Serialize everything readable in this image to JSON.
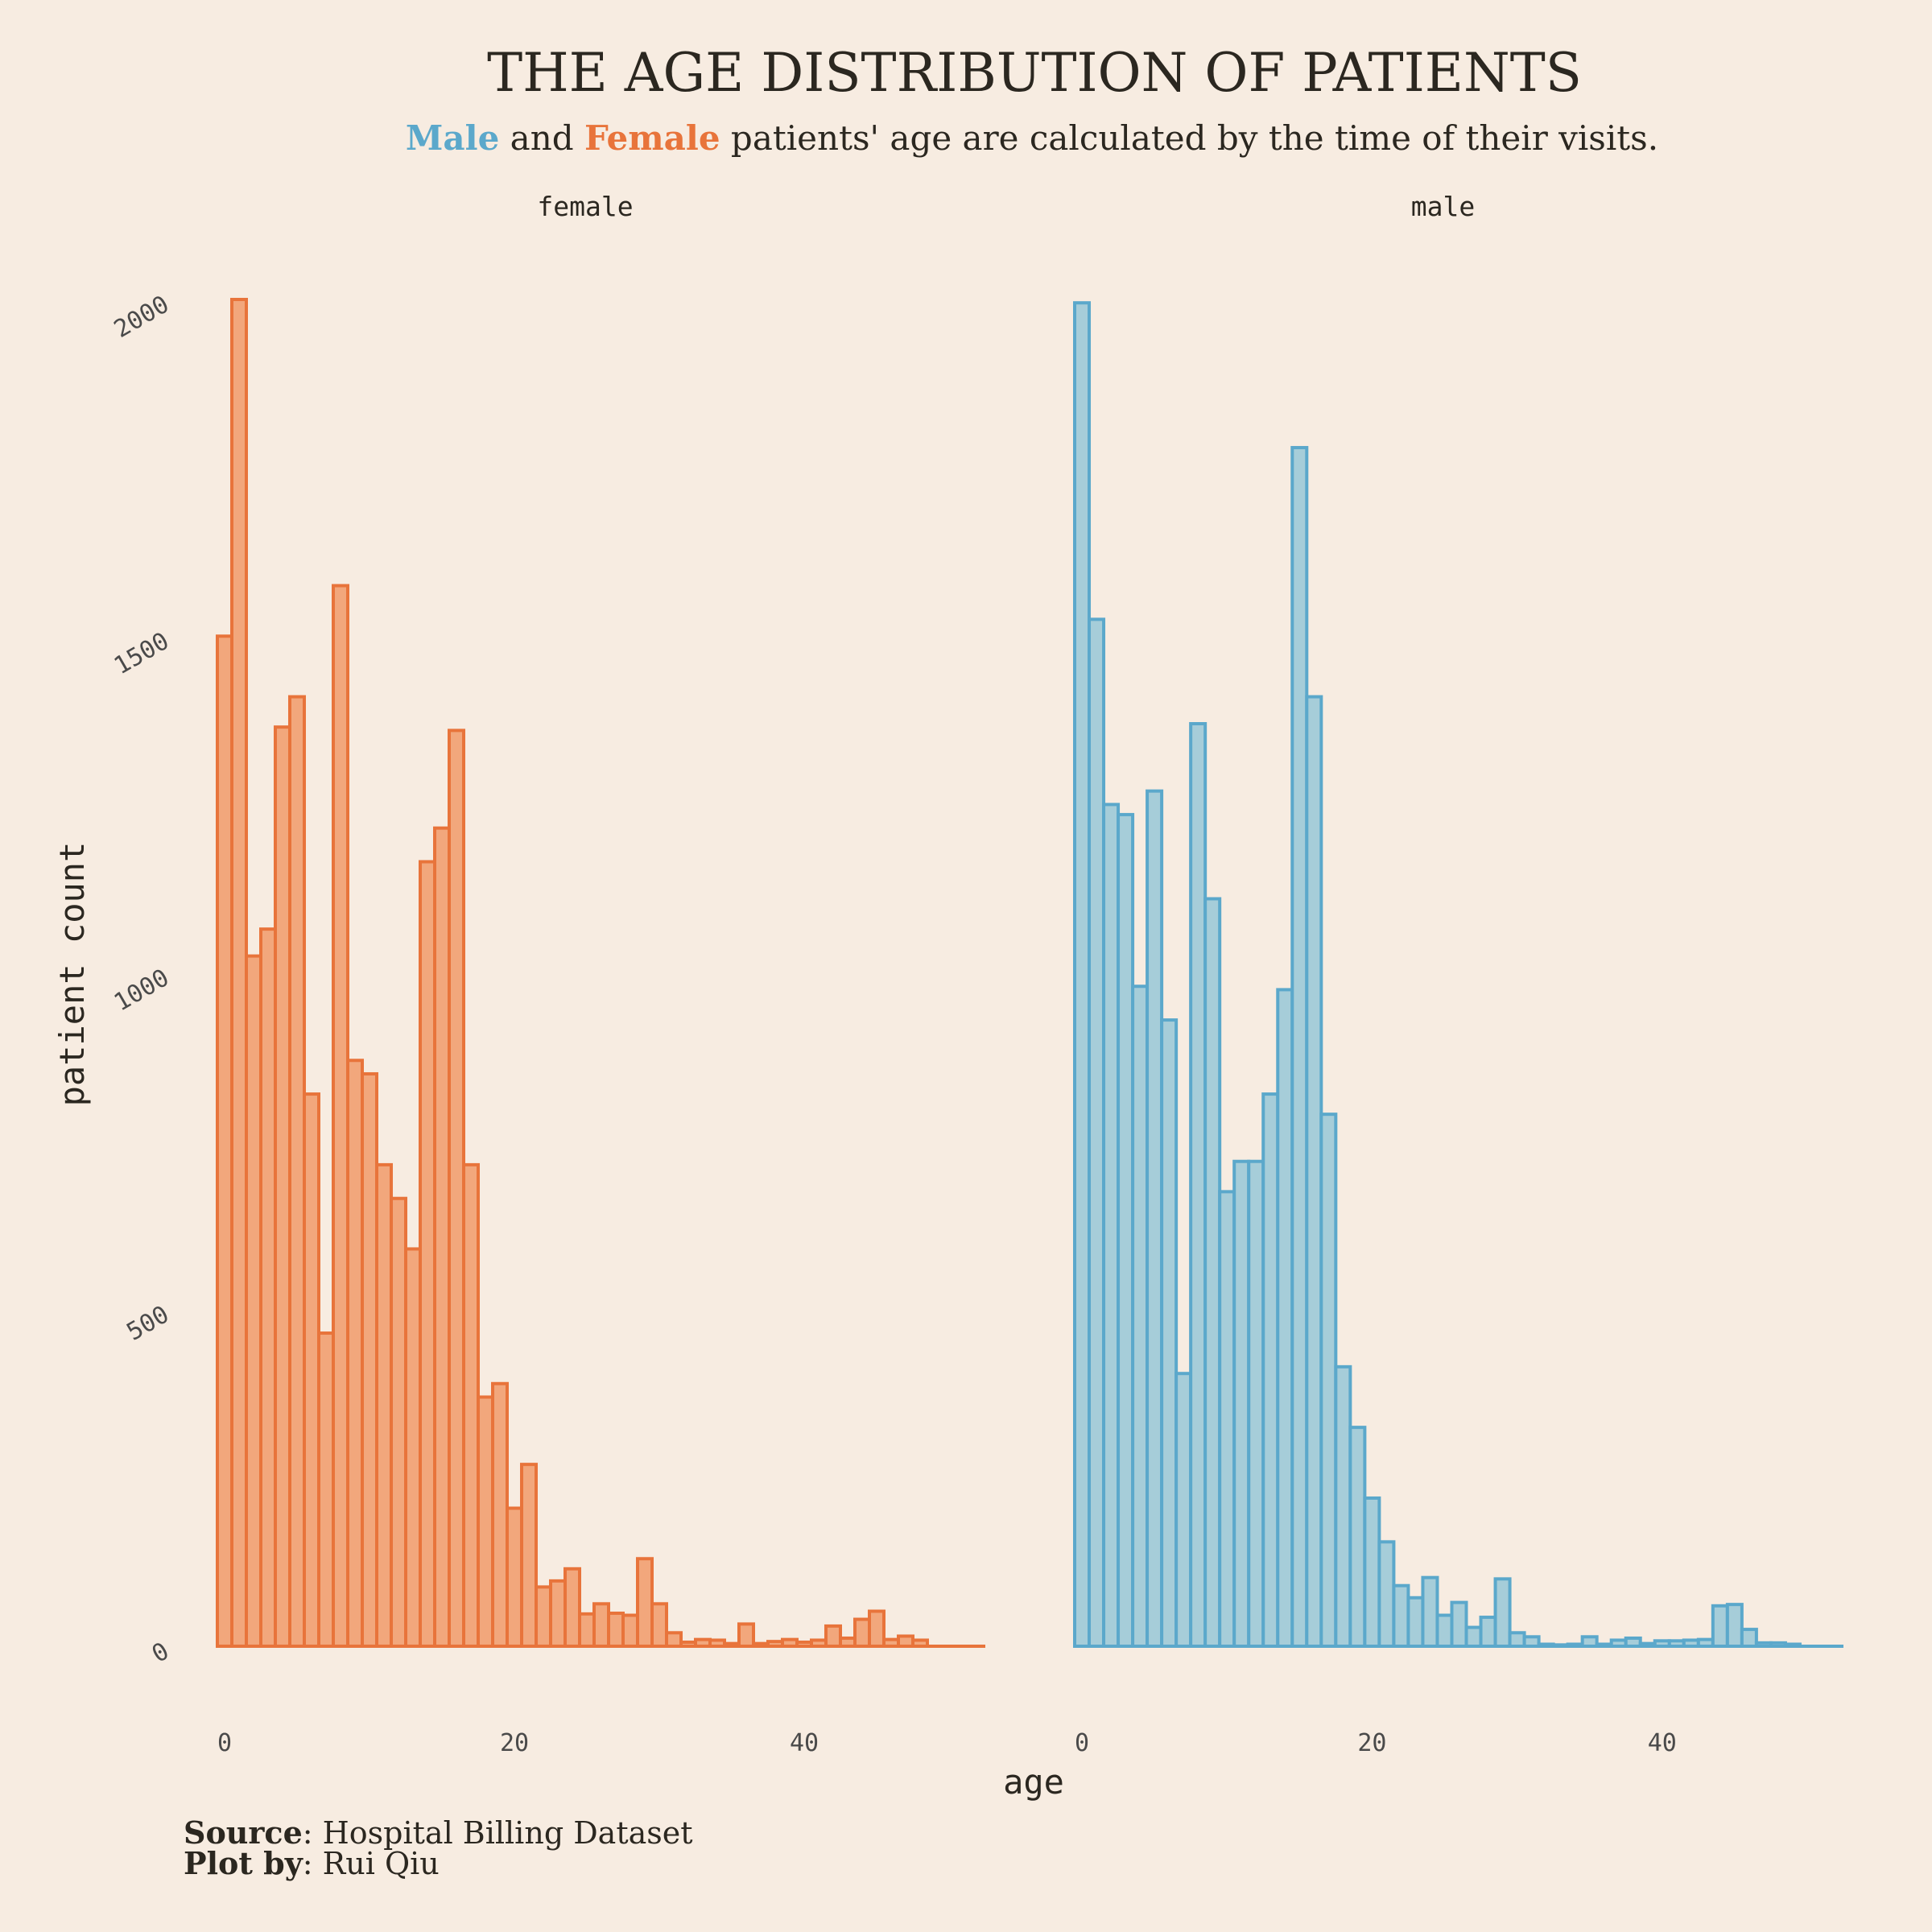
{
  "colors": {
    "background": "#F7ECE1",
    "female_fill": "#F2A77C",
    "female_stroke": "#E8743B",
    "male_fill": "#A6CDD9",
    "male_stroke": "#5BA8CB",
    "text": "#2b2720"
  },
  "title": "THE AGE DISTRIBUTION OF PATIENTS",
  "subtitle": {
    "male_word": "Male",
    "and_word": " and ",
    "female_word": "Female",
    "rest": " patients' age are calculated by the time of their visits."
  },
  "caption": {
    "source_label": "Source",
    "source_value": ": Hospital Billing Dataset",
    "plotby_label": "Plot by",
    "plotby_value": ": Rui Qiu"
  },
  "chart_data": {
    "type": "bar",
    "subtype": "histogram",
    "xlabel": "age",
    "ylabel": "patient count",
    "xlim": [
      -0.5,
      52.5
    ],
    "ylim": [
      0,
      2000
    ],
    "x_ticks": [
      0,
      20,
      40
    ],
    "y_ticks": [
      0,
      500,
      1000,
      1500,
      2000
    ],
    "bin_width": 1,
    "grid": false,
    "facets": [
      {
        "name": "female",
        "color_key": "female",
        "bin_starts": [
          -0.5,
          0.5,
          1.5,
          2.5,
          3.5,
          4.5,
          5.5,
          6.5,
          7.5,
          8.5,
          9.5,
          10.5,
          11.5,
          12.5,
          13.5,
          14.5,
          15.5,
          16.5,
          17.5,
          18.5,
          19.5,
          20.5,
          21.5,
          22.5,
          23.5,
          24.5,
          25.5,
          26.5,
          27.5,
          28.5,
          29.5,
          30.5,
          31.5,
          32.5,
          33.5,
          34.5,
          35.5,
          36.5,
          37.5,
          38.5,
          39.5,
          40.5,
          41.5,
          42.5,
          43.5,
          44.5,
          45.5,
          46.5,
          47.5,
          48.5,
          49.5,
          50.5,
          51.5
        ],
        "values": [
          1500,
          2000,
          1025,
          1065,
          1365,
          1410,
          820,
          465,
          1575,
          870,
          850,
          715,
          665,
          590,
          1165,
          1215,
          1360,
          715,
          370,
          390,
          205,
          270,
          88,
          97,
          115,
          48,
          63,
          49,
          46,
          130,
          63,
          20,
          6,
          10,
          9,
          4,
          33,
          4,
          7,
          10,
          6,
          9,
          30,
          12,
          40,
          52,
          10,
          15,
          9,
          0,
          0,
          0,
          0
        ]
      },
      {
        "name": "male",
        "color_key": "male",
        "bin_starts": [
          -0.5,
          0.5,
          1.5,
          2.5,
          3.5,
          4.5,
          5.5,
          6.5,
          7.5,
          8.5,
          9.5,
          10.5,
          11.5,
          12.5,
          13.5,
          14.5,
          15.5,
          16.5,
          17.5,
          18.5,
          19.5,
          20.5,
          21.5,
          22.5,
          23.5,
          24.5,
          25.5,
          26.5,
          27.5,
          28.5,
          29.5,
          30.5,
          31.5,
          32.5,
          33.5,
          34.5,
          35.5,
          36.5,
          37.5,
          38.5,
          39.5,
          40.5,
          41.5,
          42.5,
          43.5,
          44.5,
          45.5,
          46.5,
          47.5,
          48.5,
          49.5,
          50.5,
          51.5
        ],
        "values": [
          1995,
          1525,
          1250,
          1235,
          980,
          1270,
          930,
          405,
          1370,
          1110,
          675,
          720,
          720,
          820,
          975,
          1780,
          1410,
          790,
          415,
          325,
          220,
          155,
          90,
          72,
          102,
          46,
          65,
          28,
          43,
          100,
          20,
          14,
          3,
          2,
          3,
          14,
          3,
          9,
          12,
          4,
          8,
          8,
          9,
          10,
          60,
          62,
          25,
          5,
          5,
          3,
          0,
          0,
          0
        ]
      }
    ]
  }
}
